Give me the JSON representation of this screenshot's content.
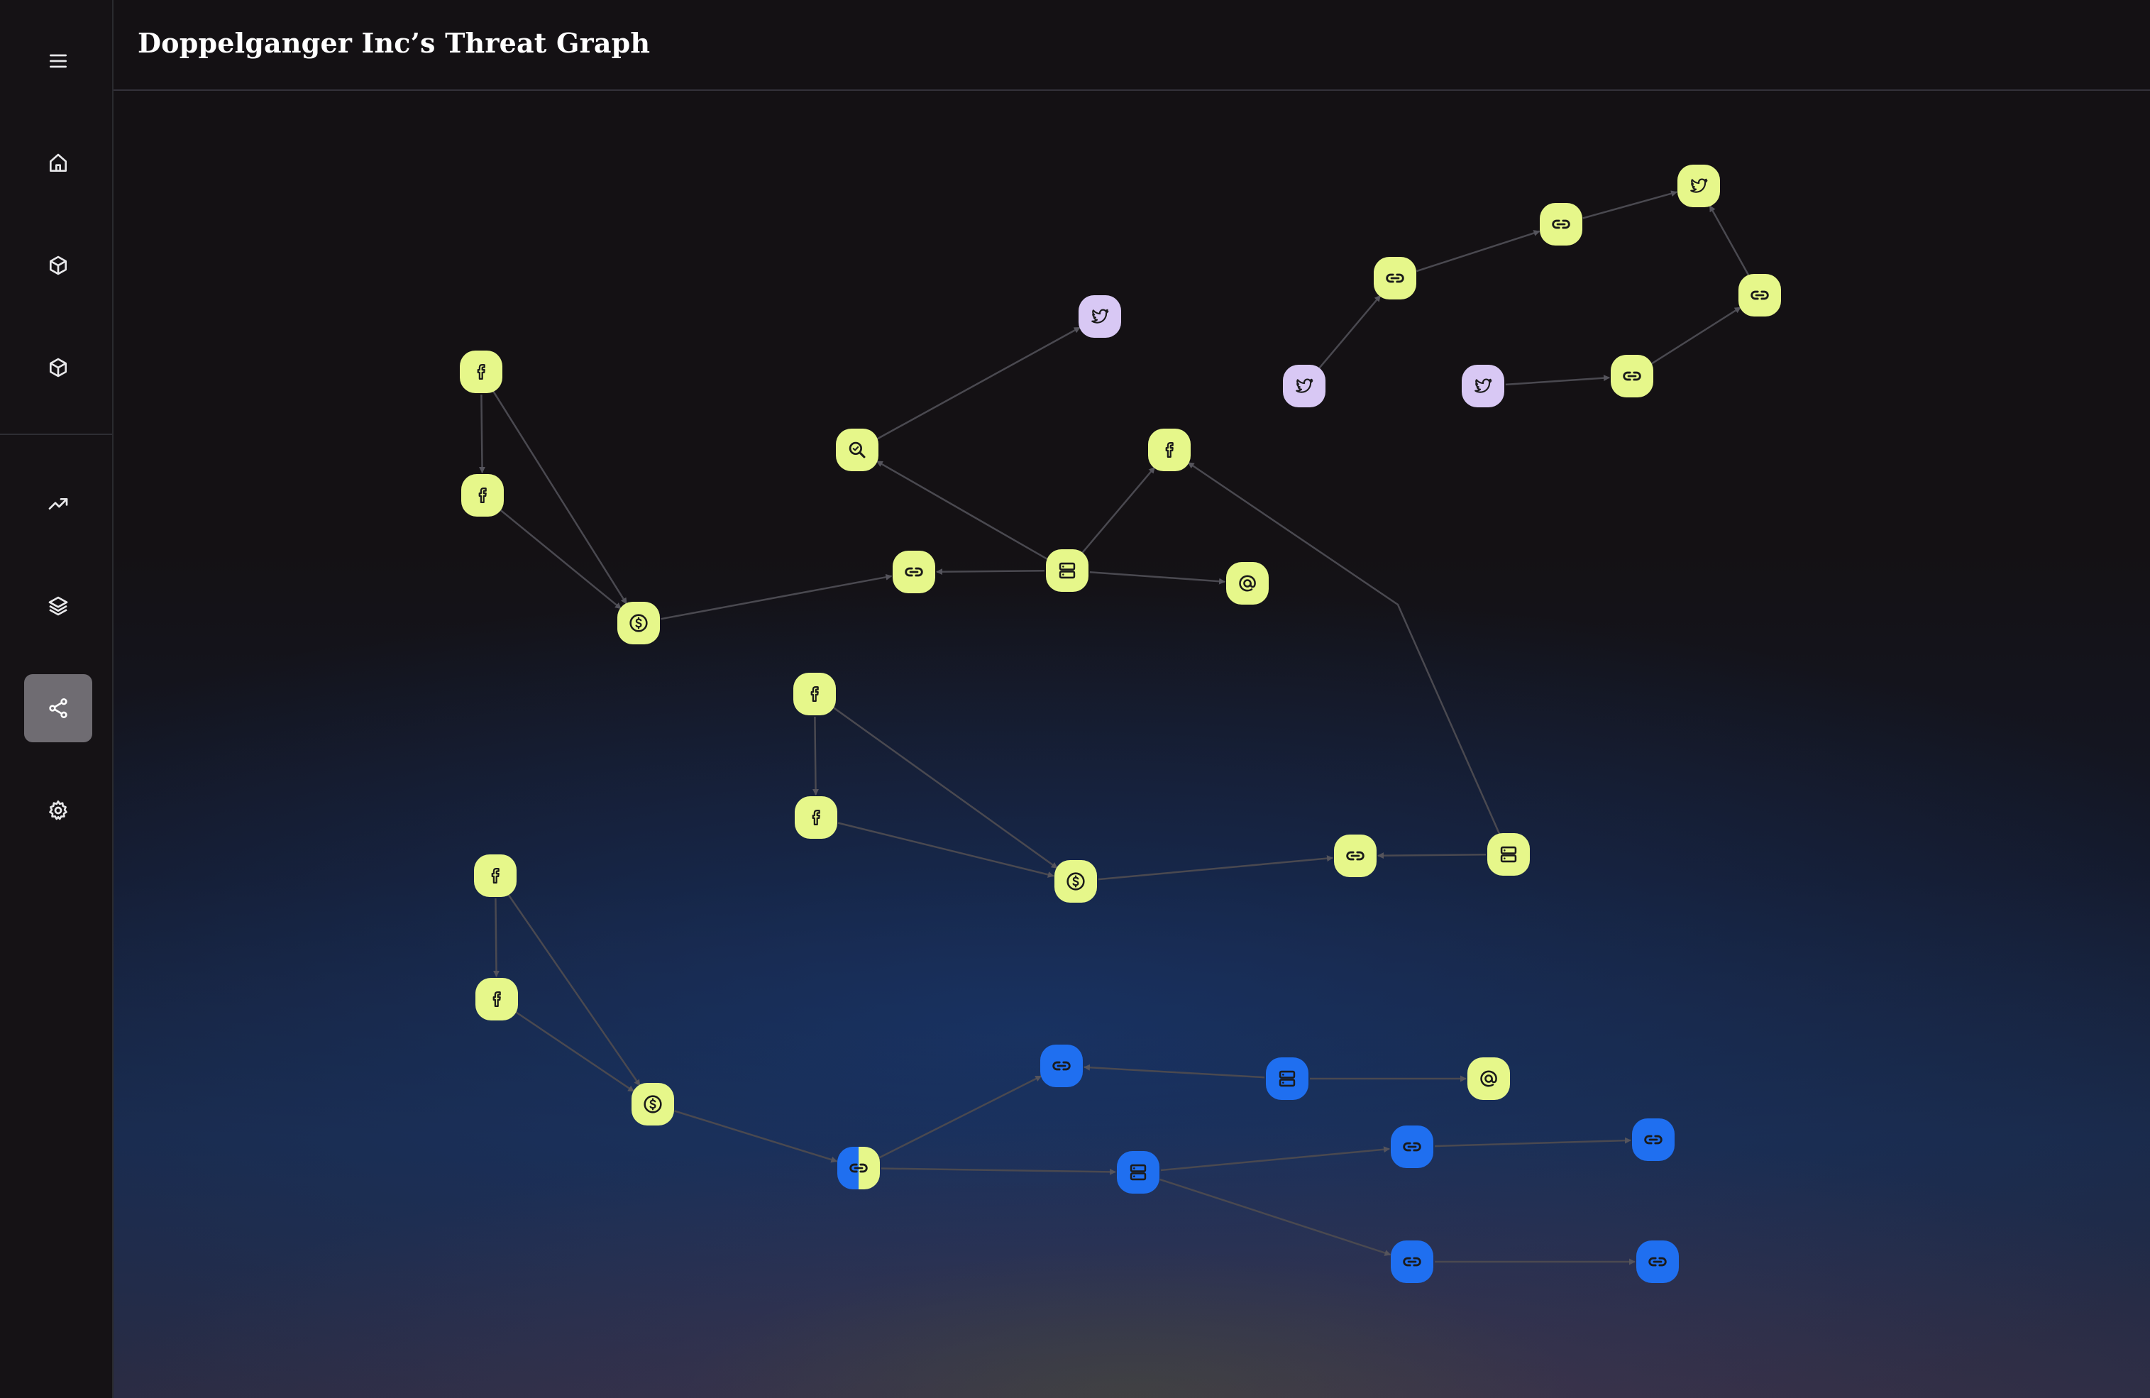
{
  "header": {
    "title": "Doppelganger Inc’s Threat Graph"
  },
  "sidebar": {
    "items": [
      {
        "name": "menu-icon",
        "icon": "menu"
      },
      {
        "name": "home-icon",
        "icon": "home"
      },
      {
        "name": "cube-icon",
        "icon": "cube"
      },
      {
        "name": "cube-icon",
        "icon": "cube"
      },
      {
        "name": "trending-up-icon",
        "icon": "trending-up"
      },
      {
        "name": "layers-icon",
        "icon": "layers"
      },
      {
        "name": "share-icon",
        "icon": "share",
        "active": true
      },
      {
        "name": "gear-icon",
        "icon": "gear"
      }
    ]
  },
  "colors": {
    "node_lime": "#e6f78a",
    "node_lavender": "#d8c8f4",
    "node_blue": "#1f6ff0",
    "edge": "#4a4950",
    "icon_dark": "#1b1b1b",
    "sidebar_active": "#6f6c72"
  },
  "graph": {
    "nodes": [
      {
        "id": "n1",
        "icon": "facebook-icon",
        "color": "lime"
      },
      {
        "id": "n2",
        "icon": "facebook-icon",
        "color": "lime"
      },
      {
        "id": "n3",
        "icon": "dollar-icon",
        "color": "lime"
      },
      {
        "id": "n4",
        "icon": "link-icon",
        "color": "lime"
      },
      {
        "id": "n5",
        "icon": "server-icon",
        "color": "lime"
      },
      {
        "id": "n6",
        "icon": "at-icon",
        "color": "lime"
      },
      {
        "id": "n7",
        "icon": "search-icon",
        "color": "lime"
      },
      {
        "id": "n8",
        "icon": "twitter-icon",
        "color": "lavender"
      },
      {
        "id": "n9",
        "icon": "facebook-icon",
        "color": "lime"
      },
      {
        "id": "n10",
        "icon": "twitter-icon",
        "color": "lavender"
      },
      {
        "id": "n11",
        "icon": "link-icon",
        "color": "lime"
      },
      {
        "id": "n12",
        "icon": "link-icon",
        "color": "lime"
      },
      {
        "id": "n13",
        "icon": "twitter-icon",
        "color": "lime"
      },
      {
        "id": "n14",
        "icon": "link-icon",
        "color": "lime"
      },
      {
        "id": "n15",
        "icon": "link-icon",
        "color": "lime"
      },
      {
        "id": "n16",
        "icon": "twitter-icon",
        "color": "lavender"
      },
      {
        "id": "n17",
        "icon": "facebook-icon",
        "color": "lime"
      },
      {
        "id": "n18",
        "icon": "facebook-icon",
        "color": "lime"
      },
      {
        "id": "n19",
        "icon": "dollar-icon",
        "color": "lime"
      },
      {
        "id": "n20",
        "icon": "link-icon",
        "color": "lime"
      },
      {
        "id": "n21",
        "icon": "server-icon",
        "color": "lime"
      },
      {
        "id": "n22",
        "icon": "facebook-icon",
        "color": "lime"
      },
      {
        "id": "n23",
        "icon": "facebook-icon",
        "color": "lime"
      },
      {
        "id": "n24",
        "icon": "dollar-icon",
        "color": "lime"
      },
      {
        "id": "n25",
        "icon": "link-icon",
        "color": "split"
      },
      {
        "id": "n26",
        "icon": "link-icon",
        "color": "blue"
      },
      {
        "id": "n27",
        "icon": "server-icon",
        "color": "blue"
      },
      {
        "id": "n28",
        "icon": "at-icon",
        "color": "lime"
      },
      {
        "id": "n29",
        "icon": "server-icon",
        "color": "blue"
      },
      {
        "id": "n30",
        "icon": "link-icon",
        "color": "blue"
      },
      {
        "id": "n31",
        "icon": "link-icon",
        "color": "blue"
      },
      {
        "id": "n32",
        "icon": "link-icon",
        "color": "blue"
      },
      {
        "id": "n33",
        "icon": "link-icon",
        "color": "blue"
      }
    ],
    "edges": [
      {
        "from": "n1",
        "to": "n2"
      },
      {
        "from": "n1",
        "to": "n3"
      },
      {
        "from": "n2",
        "to": "n3"
      },
      {
        "from": "n3",
        "to": "n4"
      },
      {
        "from": "n5",
        "to": "n4"
      },
      {
        "from": "n5",
        "to": "n6"
      },
      {
        "from": "n5",
        "to": "n7"
      },
      {
        "from": "n5",
        "to": "n9"
      },
      {
        "from": "n7",
        "to": "n8"
      },
      {
        "from": "n10",
        "to": "n11"
      },
      {
        "from": "n11",
        "to": "n12"
      },
      {
        "from": "n12",
        "to": "n13"
      },
      {
        "from": "n14",
        "to": "n13"
      },
      {
        "from": "n15",
        "to": "n14"
      },
      {
        "from": "n16",
        "to": "n15"
      },
      {
        "from": "n17",
        "to": "n18"
      },
      {
        "from": "n17",
        "to": "n19"
      },
      {
        "from": "n18",
        "to": "n19"
      },
      {
        "from": "n19",
        "to": "n20"
      },
      {
        "from": "n21",
        "to": "n20"
      },
      {
        "from": "n21",
        "to": "n9",
        "bend": true
      },
      {
        "from": "n22",
        "to": "n23"
      },
      {
        "from": "n22",
        "to": "n24"
      },
      {
        "from": "n23",
        "to": "n24"
      },
      {
        "from": "n24",
        "to": "n25"
      },
      {
        "from": "n25",
        "to": "n26"
      },
      {
        "from": "n27",
        "to": "n26"
      },
      {
        "from": "n27",
        "to": "n28"
      },
      {
        "from": "n25",
        "to": "n29"
      },
      {
        "from": "n29",
        "to": "n30"
      },
      {
        "from": "n30",
        "to": "n31"
      },
      {
        "from": "n29",
        "to": "n32"
      },
      {
        "from": "n32",
        "to": "n33"
      }
    ]
  }
}
